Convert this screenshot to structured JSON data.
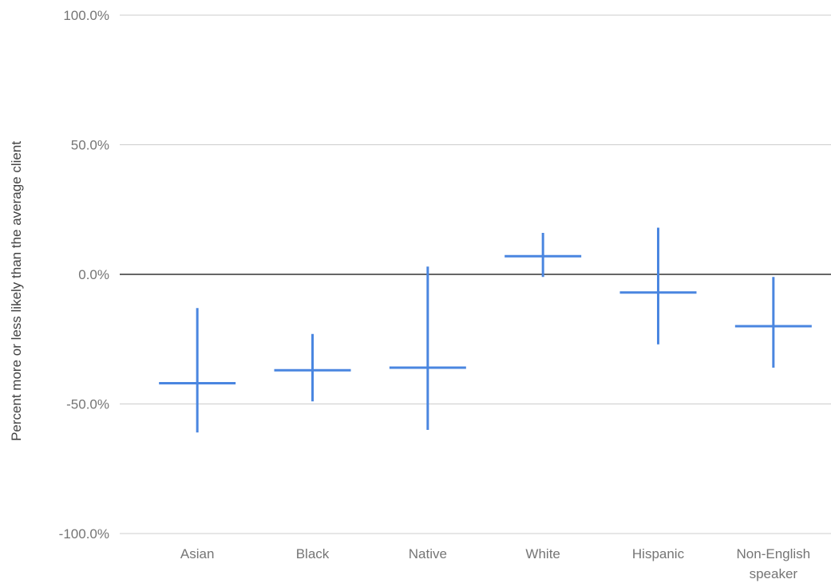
{
  "chart_data": {
    "type": "error-bar",
    "ylabel": "Percent more or less likely than the average client",
    "ylim": [
      -100,
      100
    ],
    "yticks": [
      100,
      50,
      0,
      -50,
      -100
    ],
    "ytick_labels": [
      "100.0%",
      "50.0%",
      "0.0%",
      "-50.0%",
      "-100.0%"
    ],
    "grid": true,
    "color": "#4a86e0",
    "categories": [
      {
        "label": [
          "Asian"
        ],
        "value": -42,
        "low": -61,
        "high": -13
      },
      {
        "label": [
          "Black"
        ],
        "value": -37,
        "low": -49,
        "high": -23
      },
      {
        "label": [
          "Native"
        ],
        "value": -36,
        "low": -60,
        "high": 3
      },
      {
        "label": [
          "White"
        ],
        "value": 7,
        "low": -1,
        "high": 16
      },
      {
        "label": [
          "Hispanic"
        ],
        "value": -7,
        "low": -27,
        "high": 18
      },
      {
        "label": [
          "Non-English",
          "speaker"
        ],
        "value": -20,
        "low": -36,
        "high": -1
      }
    ]
  }
}
